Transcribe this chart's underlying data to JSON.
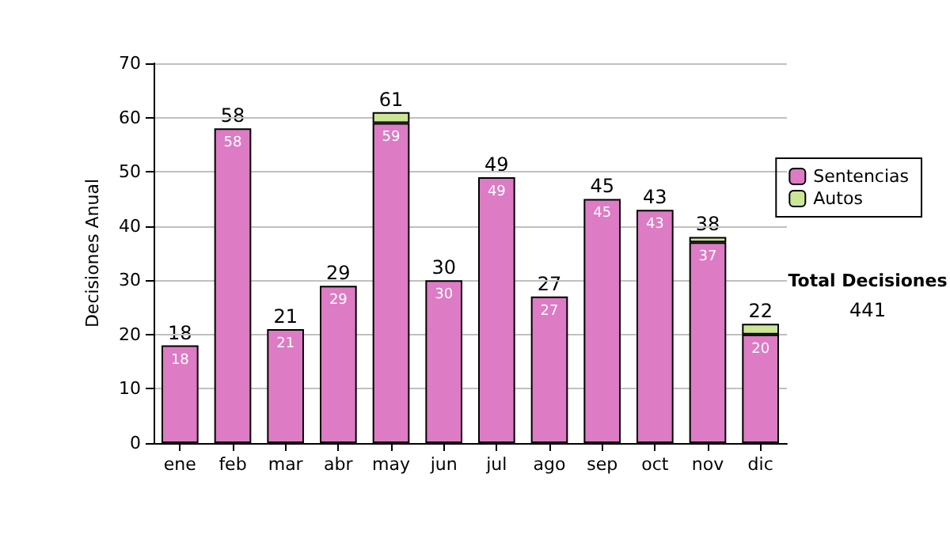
{
  "chart_data": {
    "type": "bar",
    "ylabel": "Decisiones Anual",
    "categories": [
      "ene",
      "feb",
      "mar",
      "abr",
      "may",
      "jun",
      "jul",
      "ago",
      "sep",
      "oct",
      "nov",
      "dic"
    ],
    "series": [
      {
        "name": "Sentencias",
        "color": "#dd7bc4",
        "values": [
          18,
          58,
          21,
          29,
          59,
          30,
          49,
          27,
          45,
          43,
          37,
          20
        ],
        "value_labels": [
          "18",
          "58",
          "21",
          "29",
          "59",
          "30",
          "49",
          "27",
          "45",
          "43",
          "37",
          "20"
        ]
      },
      {
        "name": "Autos",
        "color": "#cce698",
        "values": [
          null,
          null,
          null,
          null,
          2,
          null,
          null,
          null,
          null,
          null,
          1,
          2
        ]
      }
    ],
    "stacked": true,
    "totals": [
      "18",
      "58",
      "21",
      "29",
      "61",
      "30",
      "49",
      "27",
      "45",
      "43",
      "38",
      "22"
    ],
    "ylim": [
      0,
      70
    ],
    "yticks": [
      0,
      10,
      20,
      30,
      40,
      50,
      60,
      70
    ],
    "grid": "y",
    "legend": "right",
    "annotations": [
      "Total Decisiones",
      "441"
    ]
  }
}
